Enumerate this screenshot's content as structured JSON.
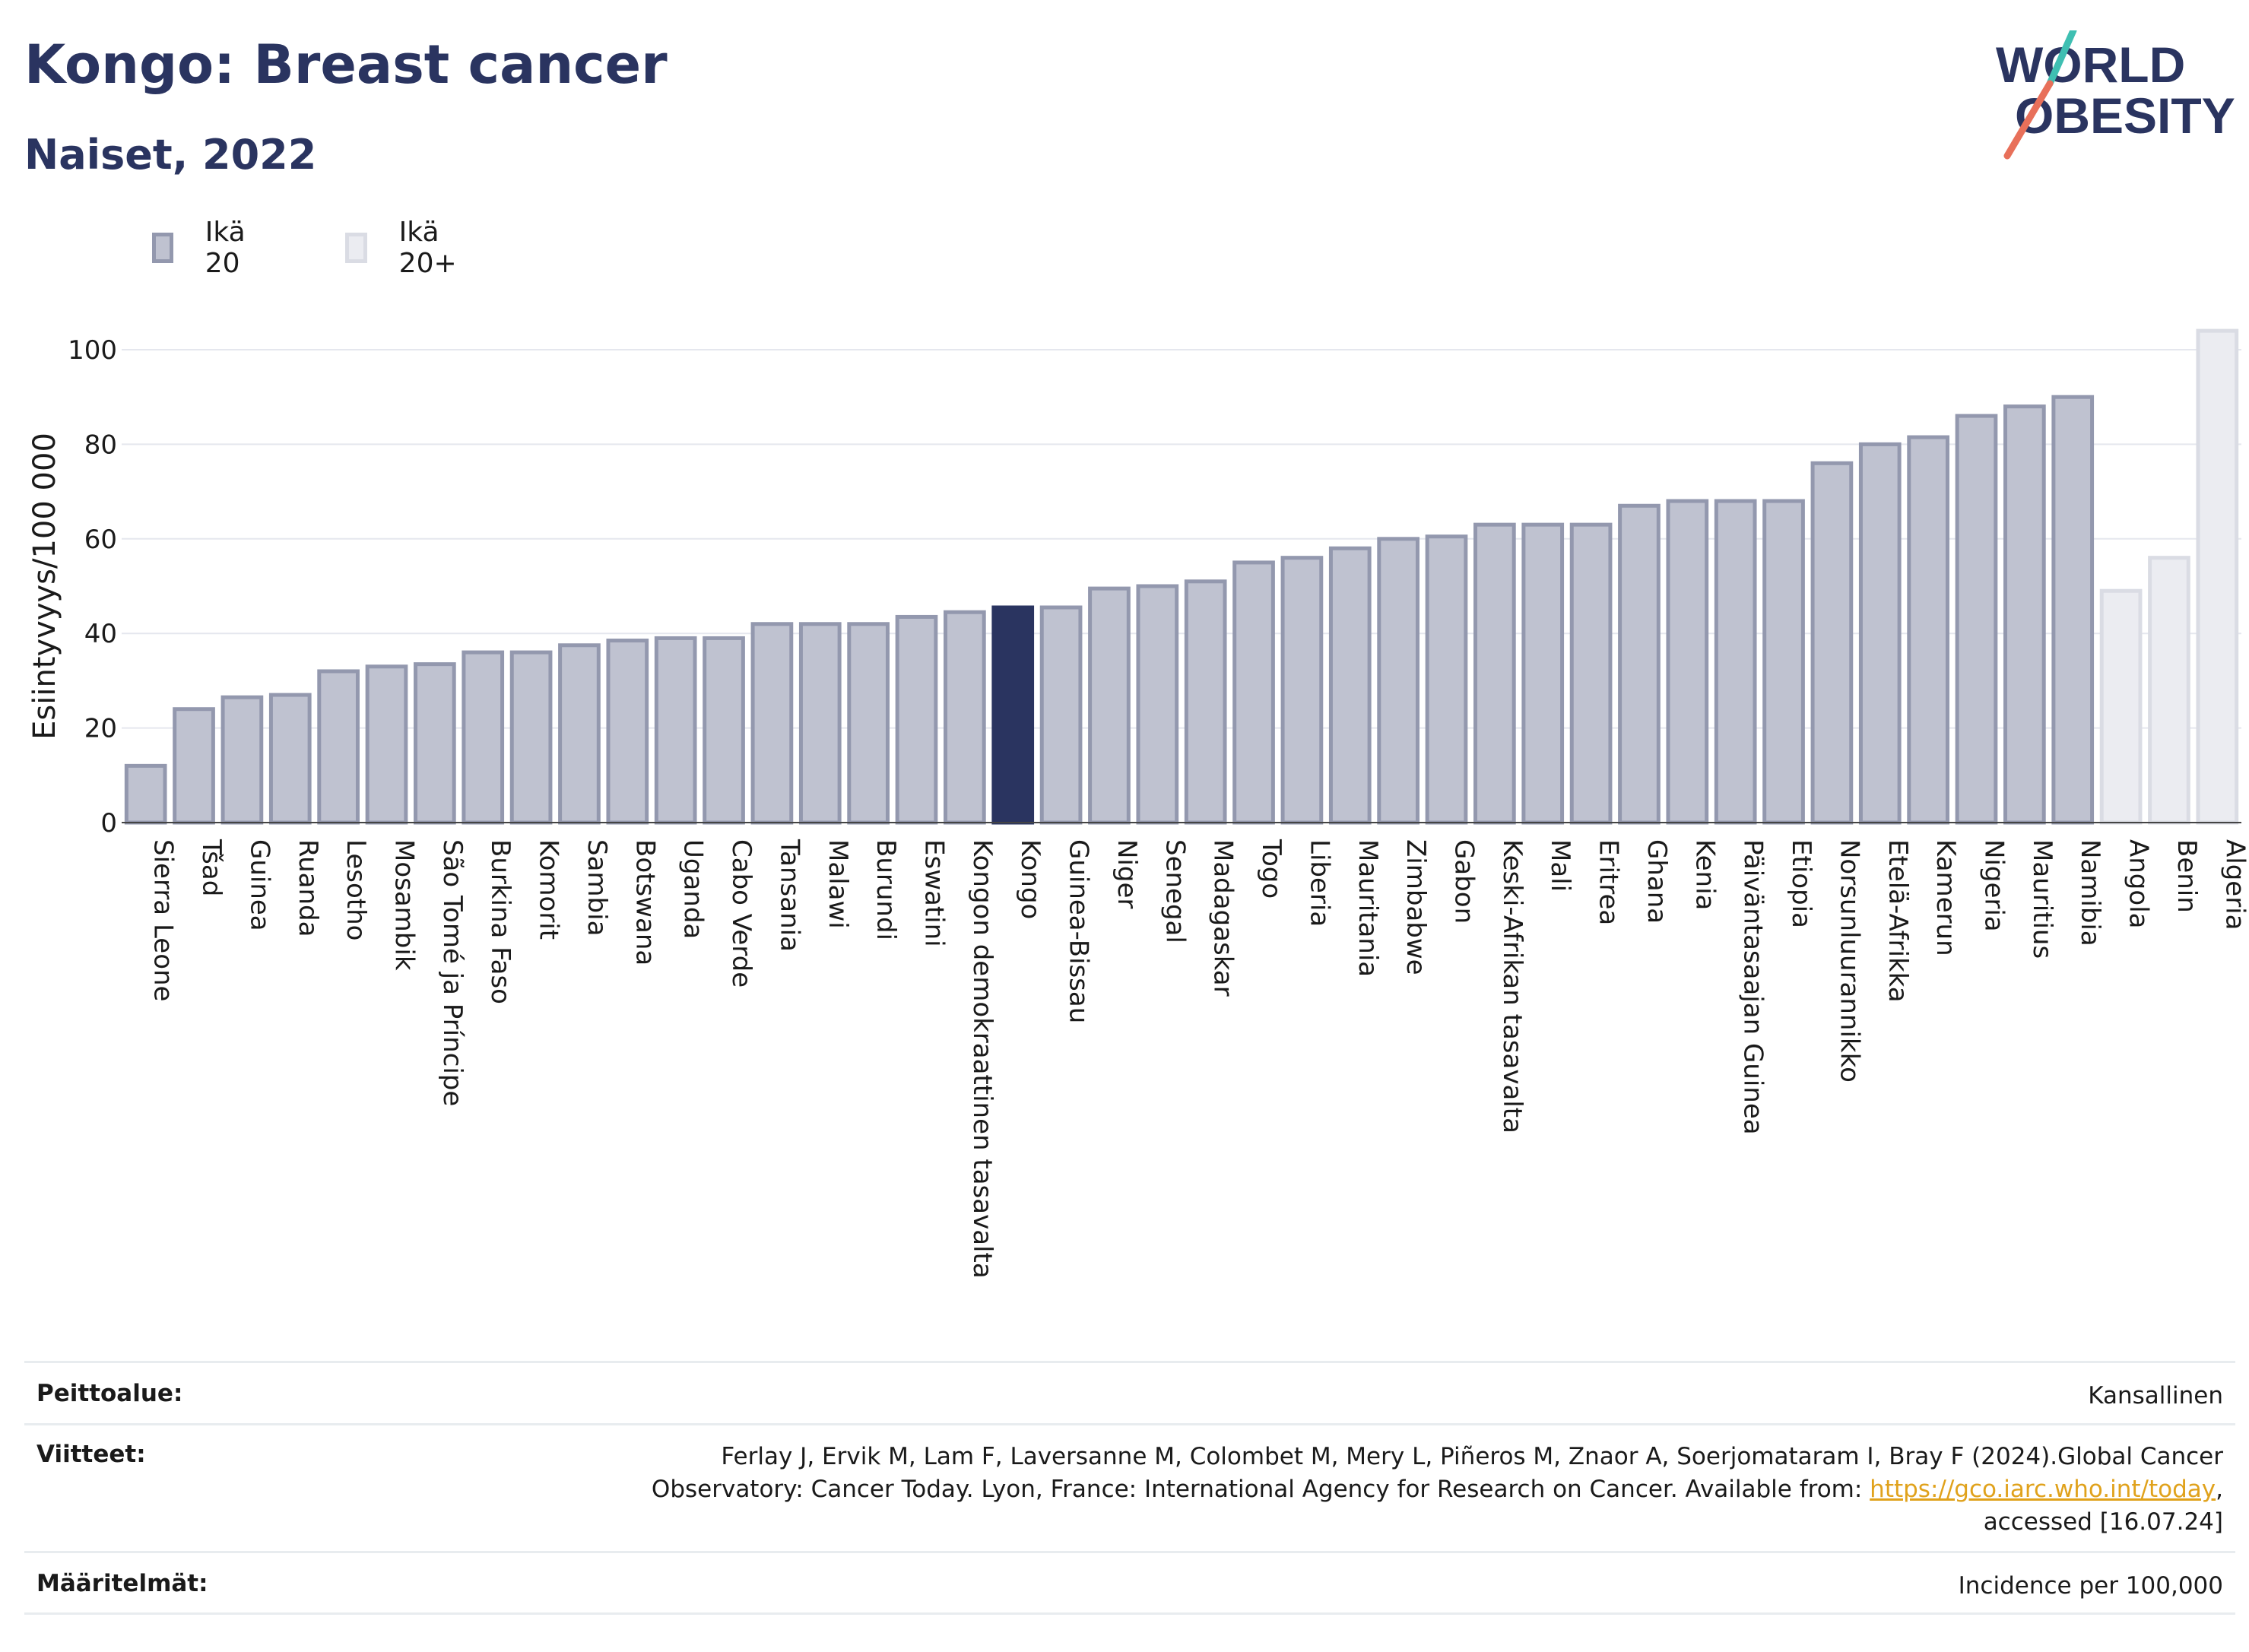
{
  "header": {
    "title": "Kongo: Breast cancer",
    "subtitle": "Naiset, 2022",
    "logo_line1": "WORLD",
    "logo_line2": "OBESITY"
  },
  "colors": {
    "title": "#2a3460",
    "bar_age20_fill": "#bfc2d0",
    "bar_age20_stroke": "#9398ae",
    "bar_highlight": "#2a3460",
    "bar_age20plus_fill": "#ebecf1",
    "bar_age20plus_stroke": "#dadce4",
    "logo_teal": "#3fbfb2",
    "logo_coral": "#e8705a"
  },
  "legend": [
    {
      "label": "Ikä 20",
      "series": "age20"
    },
    {
      "label": "Ikä 20+",
      "series": "age20plus"
    }
  ],
  "chart_data": {
    "type": "bar",
    "title": "Kongo: Breast cancer",
    "subtitle": "Naiset, 2022",
    "ylabel": "Esiintyvyys/100 000",
    "xlabel": "",
    "ylim": [
      0,
      105
    ],
    "yticks": [
      0,
      20,
      40,
      60,
      80,
      100
    ],
    "grid": true,
    "legend_position": "top-left",
    "highlight": "Kongo",
    "categories": [
      "Sierra Leone",
      "Tšad",
      "Guinea",
      "Ruanda",
      "Lesotho",
      "Mosambik",
      "São Tomé ja Príncipe",
      "Burkina Faso",
      "Komorit",
      "Sambia",
      "Botswana",
      "Uganda",
      "Cabo Verde",
      "Tansania",
      "Malawi",
      "Burundi",
      "Eswatini",
      "Kongon demokraattinen tasavalta",
      "Kongo",
      "Guinea-Bissau",
      "Niger",
      "Senegal",
      "Madagaskar",
      "Togo",
      "Liberia",
      "Mauritania",
      "Zimbabwe",
      "Gabon",
      "Keski-Afrikan tasavalta",
      "Mali",
      "Eritrea",
      "Ghana",
      "Kenia",
      "Päiväntasaajan Guinea",
      "Etiopia",
      "Norsunluurannikko",
      "Etelä-Afrikka",
      "Kamerun",
      "Nigeria",
      "Mauritius",
      "Namibia",
      "Angola",
      "Benin",
      "Algeria"
    ],
    "values": [
      12,
      24,
      26.5,
      27,
      32,
      33,
      33.5,
      36,
      36,
      37.5,
      38.5,
      39,
      39,
      42,
      42,
      42,
      43.5,
      44.5,
      45.5,
      45.5,
      49.5,
      50,
      51,
      55,
      56,
      58,
      60,
      60.5,
      63,
      63,
      63,
      67,
      68,
      68,
      68,
      76,
      80,
      81.5,
      86,
      88,
      90,
      49,
      56,
      104
    ],
    "series_of_each": [
      "age20",
      "age20",
      "age20",
      "age20",
      "age20",
      "age20",
      "age20",
      "age20",
      "age20",
      "age20",
      "age20",
      "age20",
      "age20",
      "age20",
      "age20",
      "age20",
      "age20",
      "age20",
      "age20",
      "age20",
      "age20",
      "age20",
      "age20",
      "age20",
      "age20",
      "age20",
      "age20",
      "age20",
      "age20",
      "age20",
      "age20",
      "age20",
      "age20",
      "age20",
      "age20",
      "age20",
      "age20",
      "age20",
      "age20",
      "age20",
      "age20",
      "age20plus",
      "age20plus",
      "age20plus"
    ]
  },
  "footer": {
    "coverage_label": "Peittoalue:",
    "coverage_value": "Kansallinen",
    "references_label": "Viitteet:",
    "references_line1": "Ferlay J, Ervik M, Lam F, Laversanne M, Colombet M, Mery L, Piñeros M, Znaor A, Soerjomataram I, Bray F (2024).Global Cancer",
    "references_line2_before": "Observatory: Cancer Today. Lyon, France: International Agency for Research on Cancer. Available from: ",
    "references_link": "https://gco.iarc.who.int/today",
    "references_line2_after": ",",
    "references_line3": "accessed [16.07.24]",
    "definitions_label": "Määritelmät:",
    "definitions_value": "Incidence per 100,000"
  }
}
